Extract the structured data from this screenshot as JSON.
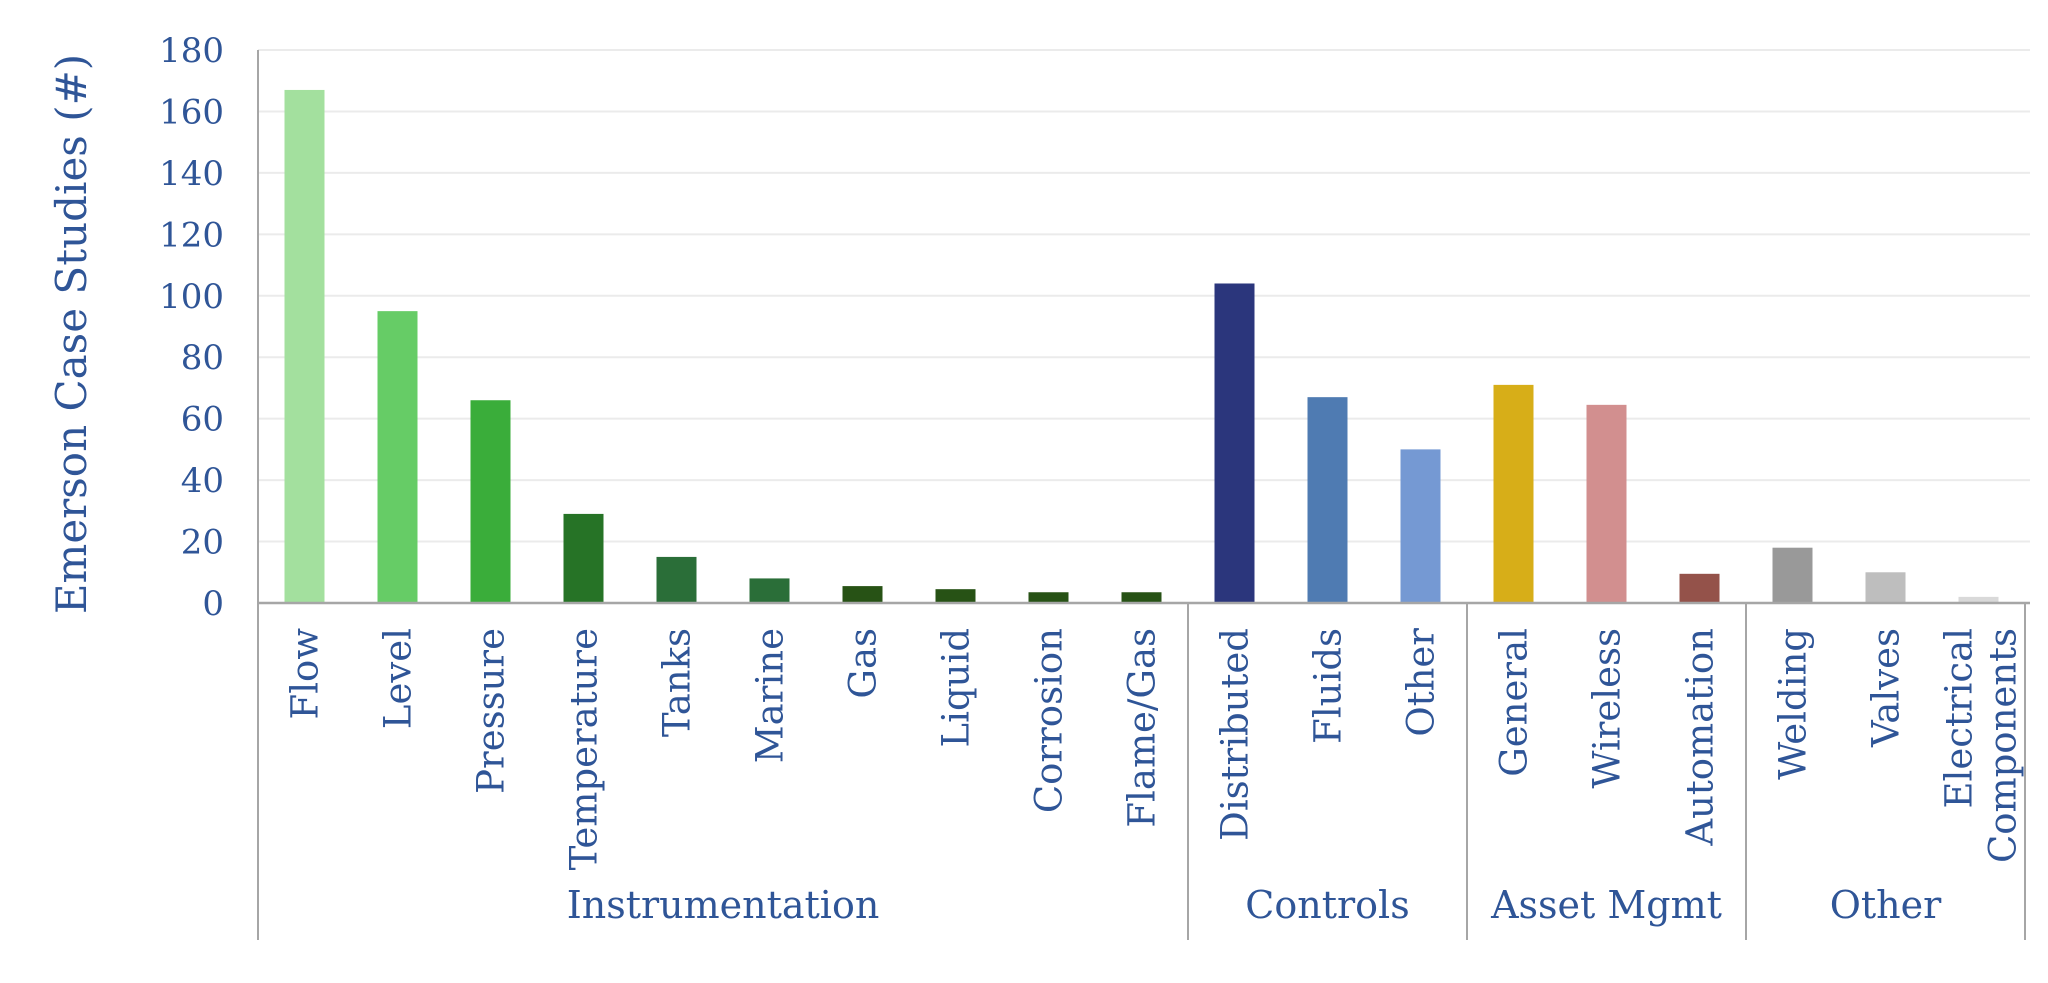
{
  "chart_data": {
    "type": "bar",
    "ylabel": "Emerson Case Studies (#)",
    "xlabel": "",
    "ylim": [
      0,
      180
    ],
    "yticks": [
      0,
      20,
      40,
      60,
      80,
      100,
      120,
      140,
      160,
      180
    ],
    "grid": true,
    "legend": "none",
    "groups": [
      {
        "name": "Instrumentation",
        "bars": [
          {
            "label": "Flow",
            "value": 167,
            "color": "#a3e09e"
          },
          {
            "label": "Level",
            "value": 95,
            "color": "#66cc66"
          },
          {
            "label": "Pressure",
            "value": 66,
            "color": "#3aad3a"
          },
          {
            "label": "Temperature",
            "value": 29,
            "color": "#267326"
          },
          {
            "label": "Tanks",
            "value": 15,
            "color": "#2a6e38"
          },
          {
            "label": "Marine",
            "value": 8,
            "color": "#2a6e38"
          },
          {
            "label": "Gas",
            "value": 5.5,
            "color": "#275215"
          },
          {
            "label": "Liquid",
            "value": 4.5,
            "color": "#275215"
          },
          {
            "label": "Corrosion",
            "value": 3.5,
            "color": "#275215"
          },
          {
            "label": "Flame/Gas",
            "value": 3.5,
            "color": "#275215"
          }
        ]
      },
      {
        "name": "Controls",
        "bars": [
          {
            "label": "Distributed",
            "value": 104,
            "color": "#2b367c"
          },
          {
            "label": "Fluids",
            "value": 67,
            "color": "#4f7bb2"
          },
          {
            "label": "Other",
            "value": 50,
            "color": "#7599d3"
          }
        ]
      },
      {
        "name": "Asset Mgmt",
        "bars": [
          {
            "label": "General",
            "value": 71,
            "color": "#d7ae18"
          },
          {
            "label": "Wireless",
            "value": 64.5,
            "color": "#d28f8f"
          },
          {
            "label": "Automation",
            "value": 9.5,
            "color": "#94524a"
          }
        ]
      },
      {
        "name": "Other",
        "bars": [
          {
            "label": "Welding",
            "value": 18,
            "color": "#999999"
          },
          {
            "label": "Valves",
            "value": 10,
            "color": "#bebebe"
          },
          {
            "label": "Electrical Components",
            "value": 2,
            "color": "#d9d9d9"
          }
        ]
      }
    ]
  }
}
